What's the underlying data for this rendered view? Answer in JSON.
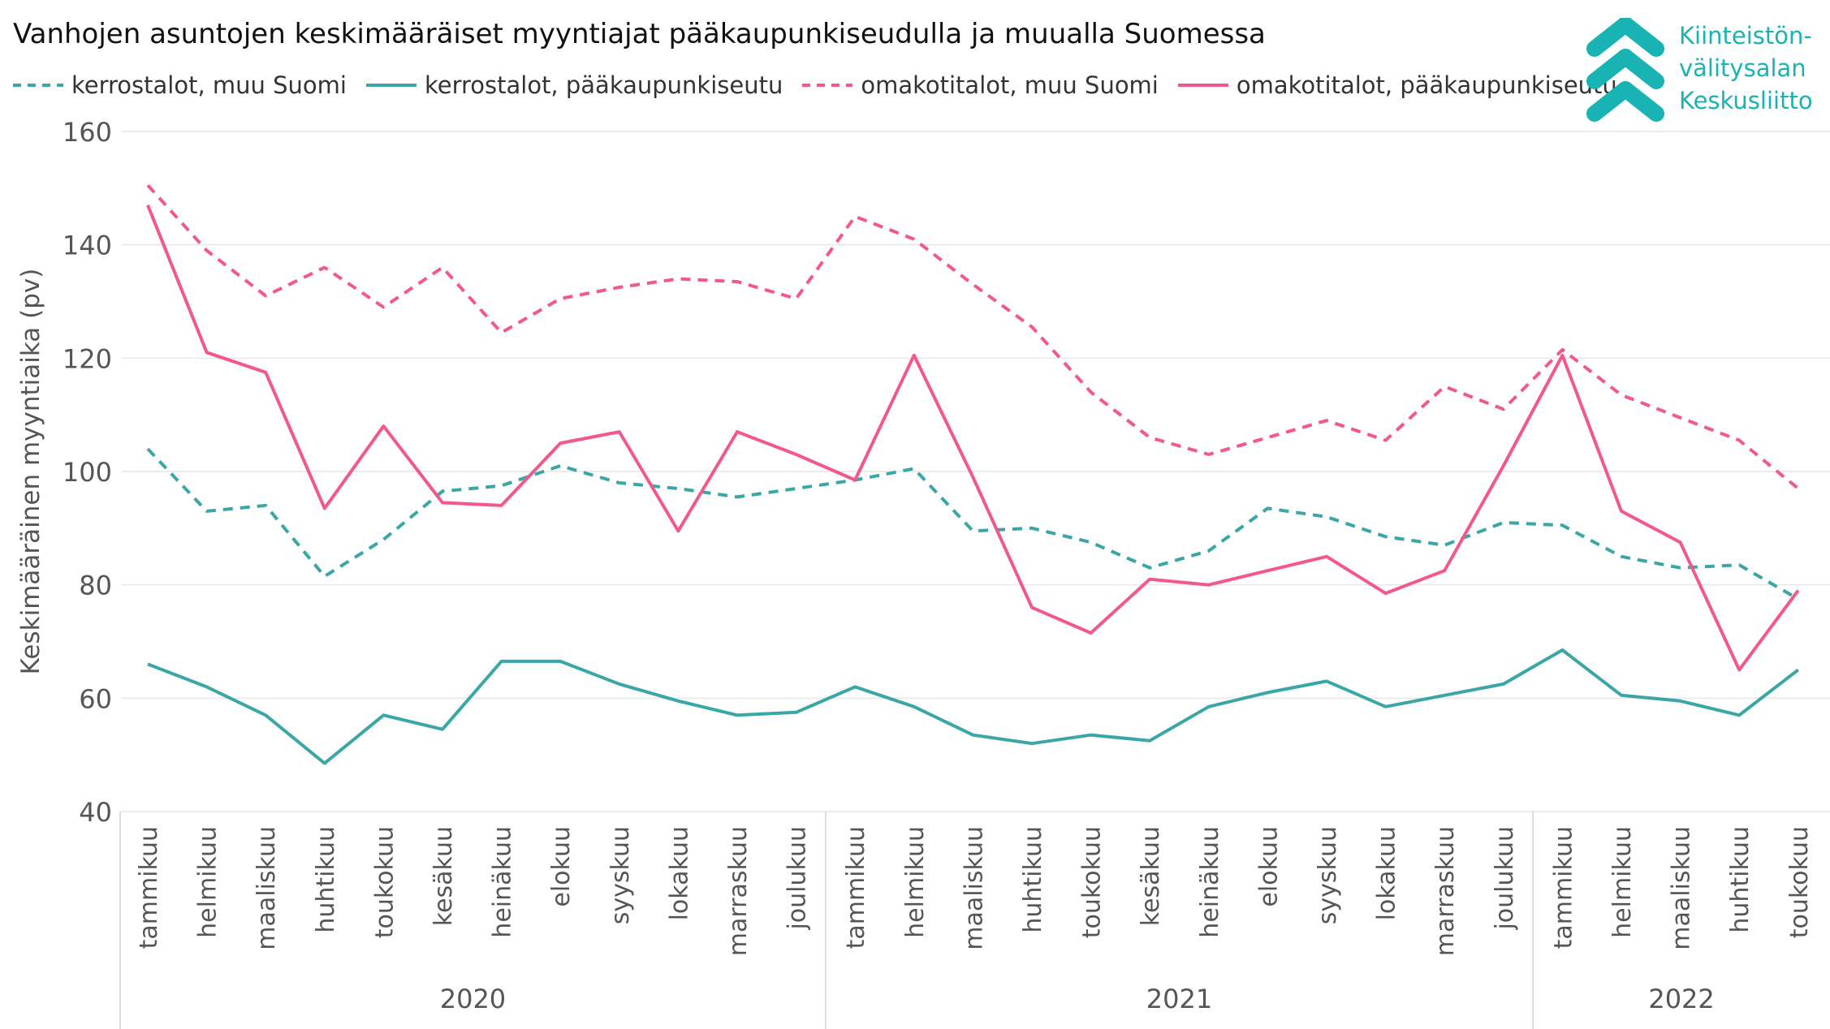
{
  "chart_data": {
    "type": "line",
    "title": "Vanhojen asuntojen keskimääräiset myyntiajat pääkaupunkiseudulla ja muualla Suomessa",
    "ylabel": "Keskimääräinen myyntiaika (pv)",
    "xlabel": "",
    "ylim": [
      40,
      160
    ],
    "yticks": [
      40,
      60,
      80,
      100,
      120,
      140,
      160
    ],
    "grid": true,
    "legend_position": "top-left",
    "categories": [
      "tammikuu",
      "helmikuu",
      "maaliskuu",
      "huhtikuu",
      "toukokuu",
      "kesäkuu",
      "heinäkuu",
      "elokuu",
      "syyskuu",
      "lokakuu",
      "marraskuu",
      "joulukuu",
      "tammikuu",
      "helmikuu",
      "maaliskuu",
      "huhtikuu",
      "toukokuu",
      "kesäkuu",
      "heinäkuu",
      "elokuu",
      "syyskuu",
      "lokakuu",
      "marraskuu",
      "joulukuu",
      "tammikuu",
      "helmikuu",
      "maaliskuu",
      "huhtikuu",
      "toukokuu"
    ],
    "years": [
      {
        "label": "2020",
        "count": 12
      },
      {
        "label": "2021",
        "count": 12
      },
      {
        "label": "2022",
        "count": 5
      }
    ],
    "series": [
      {
        "name": "kerrostalot, muu Suomi",
        "color": "#3aa6a6",
        "dashed": true,
        "values": [
          104,
          93,
          94,
          81.5,
          88,
          96.5,
          97.5,
          101,
          98,
          97,
          95.5,
          97,
          98.5,
          100.5,
          89.5,
          90,
          87.5,
          83,
          86,
          93.5,
          92,
          88.5,
          87,
          91,
          90.5,
          85,
          83,
          83.5,
          77.5
        ]
      },
      {
        "name": "kerrostalot, pääkaupunkiseutu",
        "color": "#3aa6a6",
        "dashed": false,
        "values": [
          66,
          62,
          57,
          48.5,
          57,
          54.5,
          66.5,
          66.5,
          62.5,
          59.5,
          57,
          57.5,
          62,
          58.5,
          53.5,
          52,
          53.5,
          52.5,
          58.5,
          61,
          63,
          58.5,
          60.5,
          62.5,
          68.5,
          60.5,
          59.5,
          57,
          65
        ]
      },
      {
        "name": "omakotitalot, muu Suomi",
        "color": "#f2588a",
        "dashed": true,
        "values": [
          150.5,
          139,
          131,
          136,
          129,
          136,
          124.5,
          130.5,
          132.5,
          134,
          133.5,
          130.5,
          145,
          141,
          133,
          125.5,
          114,
          106,
          103,
          106,
          109,
          105.5,
          115,
          111,
          121.5,
          113.5,
          109.5,
          105.5,
          97
        ]
      },
      {
        "name": "omakotitalot, pääkaupunkiseutu",
        "color": "#f2588a",
        "dashed": false,
        "values": [
          147,
          121,
          117.5,
          93.5,
          108,
          94.5,
          94,
          105,
          107,
          89.5,
          107,
          103,
          98.5,
          120.5,
          99,
          76,
          71.5,
          81,
          80,
          82.5,
          85,
          78.5,
          82.5,
          101,
          120.5,
          93,
          87.5,
          65,
          79
        ]
      }
    ]
  },
  "logo": {
    "lines": [
      "Kiinteistön-",
      "välitysalan",
      "Keskusliitto"
    ],
    "color": "#1ab3b3",
    "icon": "chevrons-up-icon"
  }
}
